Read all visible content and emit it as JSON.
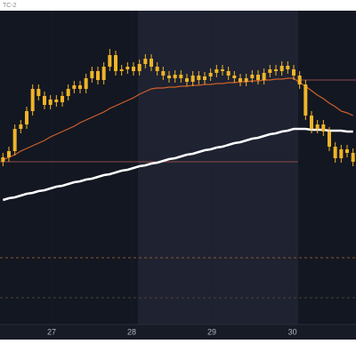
{
  "chart_data": {
    "type": "candlestick",
    "title": "TC-2",
    "open": [
      183,
      188,
      195,
      220,
      225,
      240,
      265,
      257,
      247,
      253,
      250,
      257,
      265,
      269,
      265,
      277,
      285,
      275,
      290,
      303,
      285,
      287,
      290,
      285,
      293,
      299,
      290,
      285,
      280,
      277,
      281,
      277,
      273,
      280,
      275,
      279,
      283,
      287,
      285,
      280,
      277,
      273,
      277,
      281,
      275,
      283,
      287,
      285,
      291,
      287,
      280,
      270,
      235,
      220,
      225,
      217,
      200,
      187,
      197,
      193
    ],
    "high": [
      193,
      200,
      225,
      230,
      245,
      270,
      270,
      262,
      258,
      258,
      262,
      270,
      274,
      274,
      282,
      290,
      290,
      295,
      310,
      308,
      292,
      295,
      295,
      298,
      304,
      304,
      295,
      290,
      285,
      286,
      286,
      282,
      285,
      285,
      284,
      288,
      292,
      292,
      290,
      285,
      282,
      282,
      286,
      286,
      288,
      292,
      292,
      296,
      296,
      292,
      285,
      275,
      240,
      230,
      230,
      222,
      205,
      202,
      202,
      198
    ],
    "low": [
      178,
      183,
      190,
      215,
      220,
      235,
      252,
      242,
      242,
      245,
      245,
      252,
      260,
      260,
      260,
      272,
      270,
      270,
      285,
      280,
      280,
      282,
      280,
      280,
      288,
      285,
      280,
      275,
      272,
      272,
      272,
      268,
      268,
      270,
      270,
      274,
      278,
      280,
      275,
      272,
      268,
      268,
      272,
      270,
      270,
      278,
      280,
      280,
      282,
      275,
      265,
      230,
      215,
      215,
      212,
      195,
      182,
      182,
      188,
      178
    ],
    "close": [
      188,
      195,
      220,
      225,
      240,
      265,
      257,
      247,
      253,
      250,
      257,
      265,
      269,
      265,
      277,
      285,
      275,
      290,
      303,
      285,
      287,
      290,
      285,
      293,
      299,
      290,
      285,
      280,
      277,
      281,
      277,
      273,
      280,
      275,
      279,
      283,
      287,
      285,
      280,
      277,
      273,
      277,
      281,
      275,
      283,
      287,
      285,
      291,
      287,
      280,
      270,
      235,
      220,
      225,
      217,
      200,
      187,
      197,
      193,
      183
    ],
    "color": "#f0b429",
    "overlays": [
      {
        "color": "#ffffff",
        "width": 2.5,
        "values": [
          140,
          142,
          143,
          145,
          147,
          148,
          150,
          151,
          153,
          155,
          156,
          158,
          160,
          161,
          163,
          164,
          166,
          168,
          169,
          171,
          173,
          174,
          176,
          178,
          179,
          181,
          182,
          184,
          186,
          187,
          189,
          191,
          192,
          194,
          196,
          197,
          199,
          200,
          202,
          204,
          205,
          207,
          209,
          210,
          212,
          214,
          215,
          217,
          218,
          220,
          220,
          220,
          219,
          219,
          219,
          218,
          218,
          218,
          217,
          217
        ]
      },
      {
        "color": "#d0602a",
        "width": 1.2,
        "values": [
          185,
          188,
          191,
          195,
          198,
          201,
          204,
          207,
          211,
          214,
          217,
          220,
          223,
          227,
          230,
          233,
          236,
          239,
          243,
          246,
          249,
          252,
          255,
          259,
          262,
          265,
          266,
          266,
          267,
          267,
          268,
          268,
          269,
          269,
          270,
          270,
          271,
          271,
          272,
          272,
          273,
          273,
          274,
          274,
          275,
          275,
          276,
          276,
          277,
          277,
          272,
          268,
          263,
          258,
          254,
          249,
          245,
          240,
          238,
          235
        ]
      }
    ],
    "levels": [
      {
        "value": 183,
        "color": "#8d4b45",
        "dashed": false,
        "range": [
          -0.5,
          49.7
        ]
      },
      {
        "value": 275,
        "color": "#8d4b45",
        "dashed": false,
        "range": [
          49.7,
          59.5
        ]
      },
      {
        "value": 75,
        "color": "#8a5a2a",
        "dashed": true,
        "range": [
          -0.5,
          59.5
        ]
      },
      {
        "value": 30,
        "color": "#4a4030",
        "dashed": true,
        "range": [
          -0.5,
          59.5
        ]
      }
    ],
    "xlim": [
      -0.5,
      59.5
    ],
    "ylim": [
      0,
      353
    ],
    "xticks": [
      {
        "value": 8.2,
        "label": "27"
      },
      {
        "value": 21.7,
        "label": "28"
      },
      {
        "value": 35.2,
        "label": "29"
      },
      {
        "value": 48.8,
        "label": "30"
      }
    ]
  }
}
